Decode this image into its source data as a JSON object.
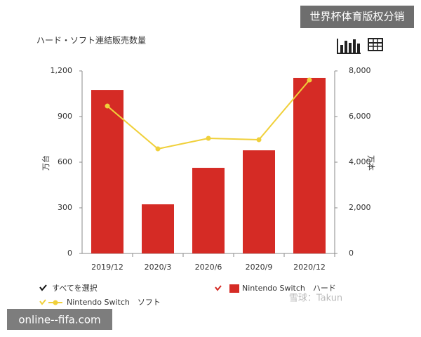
{
  "chart_data": {
    "type": "bar",
    "title": "ハード・ソフト連結販売数量",
    "ylabel": "万台",
    "y2label": "万本",
    "categories": [
      "2019/12",
      "2020/3",
      "2020/6",
      "2020/9",
      "2020/12"
    ],
    "series": [
      {
        "name": "Nintendo Switch　ハード",
        "type": "bar",
        "color": "#d52b25",
        "values": [
          1075,
          323,
          563,
          678,
          1154
        ]
      },
      {
        "name": "Nintendo Switch　ソフト",
        "type": "line",
        "axis": "y2",
        "color": "#f0d03a",
        "values": [
          6460,
          4585,
          5046,
          4985,
          7600
        ]
      }
    ],
    "ylim": [
      0,
      1200
    ],
    "yticks": [
      0,
      300,
      600,
      900,
      {
        "value": 1200,
        "label": "1,200"
      }
    ],
    "y2lim": [
      0,
      8000
    ],
    "y2ticks": [
      0,
      {
        "value": 2000,
        "label": "2,000"
      },
      {
        "value": 4000,
        "label": "4,000"
      },
      {
        "value": 6000,
        "label": "6,000"
      },
      {
        "value": 8000,
        "label": "8,000"
      }
    ],
    "grid": false,
    "legend_select_all": "すべてを選択"
  },
  "overlays": {
    "top_banner": "世界杯体育版权分销",
    "watermark": "雪球：Takun",
    "footer_banner": "online--fifa.com"
  }
}
